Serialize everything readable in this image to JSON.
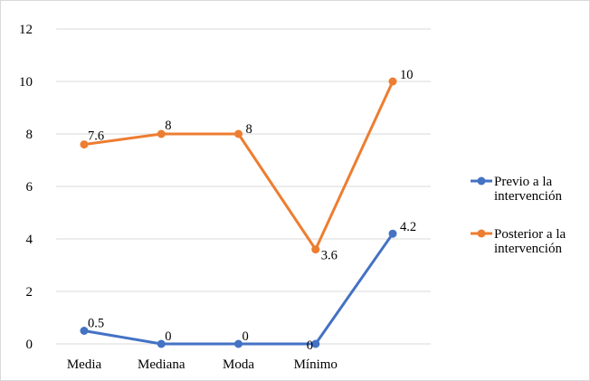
{
  "chart_data": {
    "type": "line",
    "categories": [
      "Media",
      "Mediana",
      "Moda",
      "Mínimo",
      ""
    ],
    "ylim": [
      0,
      12
    ],
    "yticks": [
      0,
      2,
      4,
      6,
      8,
      10,
      12
    ],
    "grid": true,
    "legend_position": "right",
    "series": [
      {
        "name_lines": [
          "Previo a la",
          "intervención"
        ],
        "color": "#4472C4",
        "values": [
          0.5,
          0,
          0,
          0,
          4.2
        ],
        "labels": [
          "0.5",
          "0",
          "0",
          "0",
          "4.2"
        ]
      },
      {
        "name_lines": [
          "Posterior a la",
          "intervención"
        ],
        "color": "#ED7D31",
        "values": [
          7.6,
          8,
          8,
          3.6,
          10
        ],
        "labels": [
          "7.6",
          "8",
          "8",
          "3.6",
          "10"
        ]
      }
    ]
  }
}
